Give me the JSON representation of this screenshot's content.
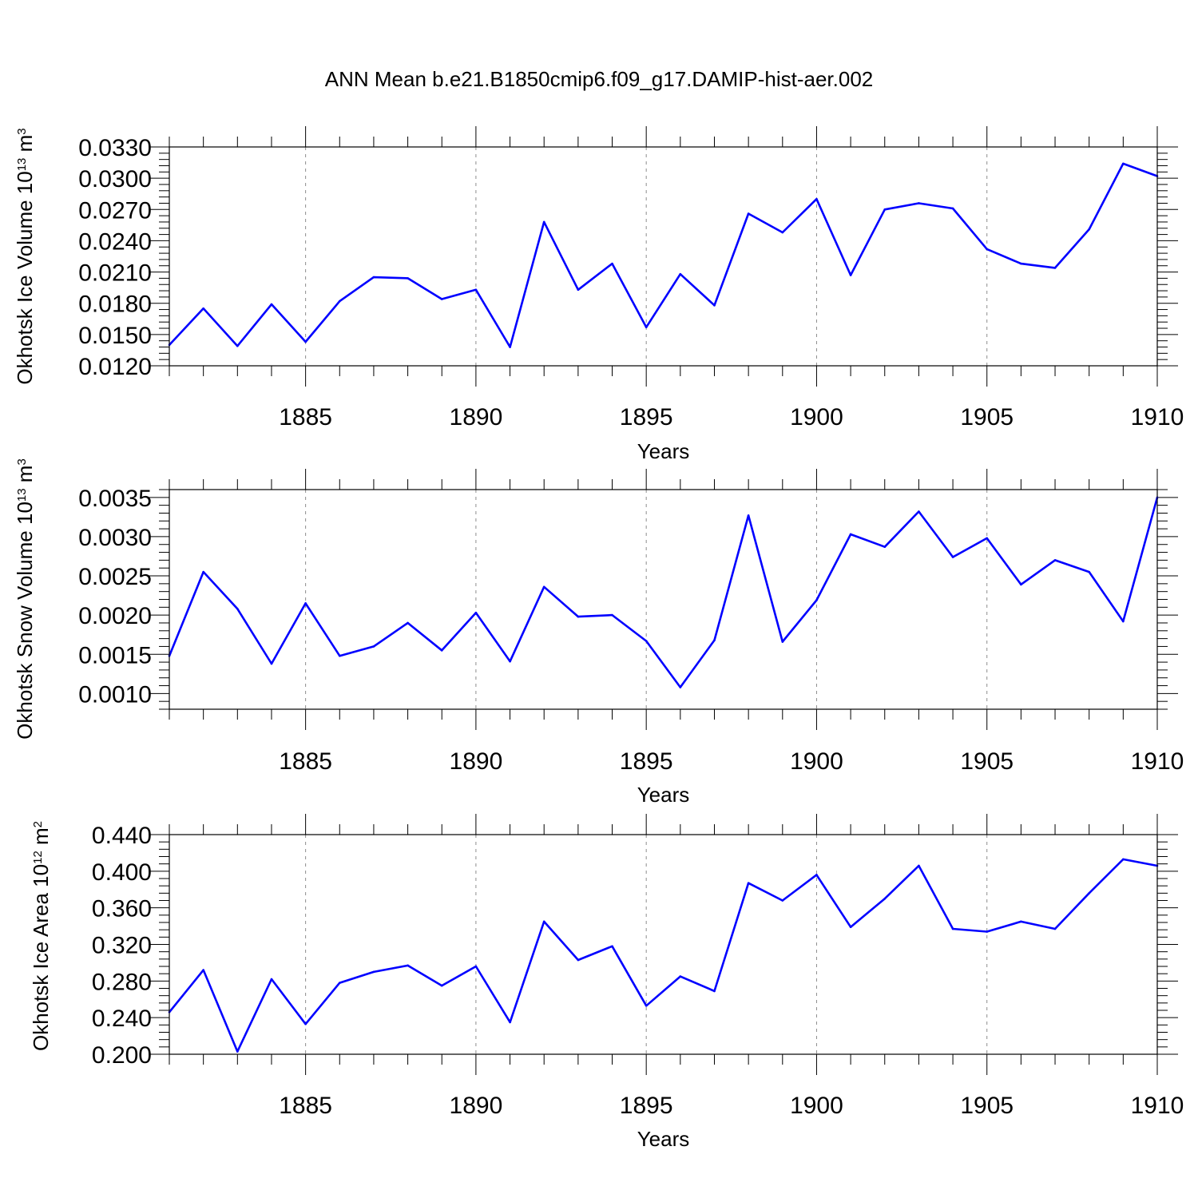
{
  "figure": {
    "title": "ANN Mean b.e21.B1850cmip6.f09_g17.DAMIP-hist-aer.002"
  },
  "chart_data": [
    {
      "type": "line",
      "xlabel": "Years",
      "ylabel_text": "Okhotsk Ice Volume 10",
      "ylabel_exp": "13",
      "ylabel_unit": " m",
      "ylabel_unit_exp": "3",
      "xlim": [
        1881,
        1910
      ],
      "ylim": [
        0.012,
        0.033
      ],
      "xticks": [
        "1885",
        "1890",
        "1895",
        "1900",
        "1905",
        "1910"
      ],
      "yticks": [
        "0.0120",
        "0.0150",
        "0.0180",
        "0.0210",
        "0.0240",
        "0.0270",
        "0.0300",
        "0.0330"
      ],
      "grid": "vertical-dashed",
      "line_color": "#0000ff",
      "series": [
        {
          "x": [
            1881,
            1882,
            1883,
            1884,
            1885,
            1886,
            1887,
            1888,
            1889,
            1890,
            1891,
            1892,
            1893,
            1894,
            1895,
            1896,
            1897,
            1898,
            1899,
            1900,
            1901,
            1902,
            1903,
            1904,
            1905,
            1906,
            1907,
            1908,
            1909,
            1910
          ],
          "values": [
            0.014,
            0.0175,
            0.0139,
            0.0179,
            0.0143,
            0.0182,
            0.0205,
            0.0204,
            0.0184,
            0.0193,
            0.0138,
            0.0258,
            0.0193,
            0.0218,
            0.0157,
            0.0208,
            0.0178,
            0.0266,
            0.0248,
            0.028,
            0.0207,
            0.027,
            0.0276,
            0.0271,
            0.0232,
            0.0218,
            0.0214,
            0.0251,
            0.0314,
            0.0302
          ]
        }
      ]
    },
    {
      "type": "line",
      "xlabel": "Years",
      "ylabel_text": "Okhotsk Snow Volume 10",
      "ylabel_exp": "13",
      "ylabel_unit": " m",
      "ylabel_unit_exp": "3",
      "xlim": [
        1881,
        1910
      ],
      "ylim": [
        0.0008,
        0.0036
      ],
      "xticks": [
        "1885",
        "1890",
        "1895",
        "1900",
        "1905",
        "1910"
      ],
      "yticks": [
        "0.0010",
        "0.0015",
        "0.0020",
        "0.0025",
        "0.0030",
        "0.0035"
      ],
      "grid": "vertical-dashed",
      "line_color": "#0000ff",
      "series": [
        {
          "x": [
            1881,
            1882,
            1883,
            1884,
            1885,
            1886,
            1887,
            1888,
            1889,
            1890,
            1891,
            1892,
            1893,
            1894,
            1895,
            1896,
            1897,
            1898,
            1899,
            1900,
            1901,
            1902,
            1903,
            1904,
            1905,
            1906,
            1907,
            1908,
            1909,
            1910
          ],
          "values": [
            0.00148,
            0.00255,
            0.00208,
            0.00138,
            0.00215,
            0.00148,
            0.0016,
            0.0019,
            0.00155,
            0.00203,
            0.00141,
            0.00236,
            0.00198,
            0.002,
            0.00167,
            0.00108,
            0.00168,
            0.00327,
            0.00166,
            0.00219,
            0.00303,
            0.00287,
            0.00332,
            0.00274,
            0.00298,
            0.00239,
            0.0027,
            0.00255,
            0.00192,
            0.0035
          ]
        }
      ]
    },
    {
      "type": "line",
      "xlabel": "Years",
      "ylabel_text": "Okhotsk Ice Area 10",
      "ylabel_exp": "12",
      "ylabel_unit": " m",
      "ylabel_unit_exp": "2",
      "xlim": [
        1881,
        1910
      ],
      "ylim": [
        0.2,
        0.44
      ],
      "xticks": [
        "1885",
        "1890",
        "1895",
        "1900",
        "1905",
        "1910"
      ],
      "yticks": [
        "0.200",
        "0.240",
        "0.280",
        "0.320",
        "0.360",
        "0.400",
        "0.440"
      ],
      "grid": "vertical-dashed",
      "line_color": "#0000ff",
      "series": [
        {
          "x": [
            1881,
            1882,
            1883,
            1884,
            1885,
            1886,
            1887,
            1888,
            1889,
            1890,
            1891,
            1892,
            1893,
            1894,
            1895,
            1896,
            1897,
            1898,
            1899,
            1900,
            1901,
            1902,
            1903,
            1904,
            1905,
            1906,
            1907,
            1908,
            1909,
            1910
          ],
          "values": [
            0.246,
            0.292,
            0.203,
            0.282,
            0.233,
            0.278,
            0.29,
            0.297,
            0.275,
            0.296,
            0.235,
            0.345,
            0.303,
            0.318,
            0.253,
            0.285,
            0.269,
            0.387,
            0.368,
            0.396,
            0.339,
            0.37,
            0.406,
            0.337,
            0.334,
            0.345,
            0.337,
            0.376,
            0.413,
            0.406
          ]
        }
      ]
    }
  ]
}
